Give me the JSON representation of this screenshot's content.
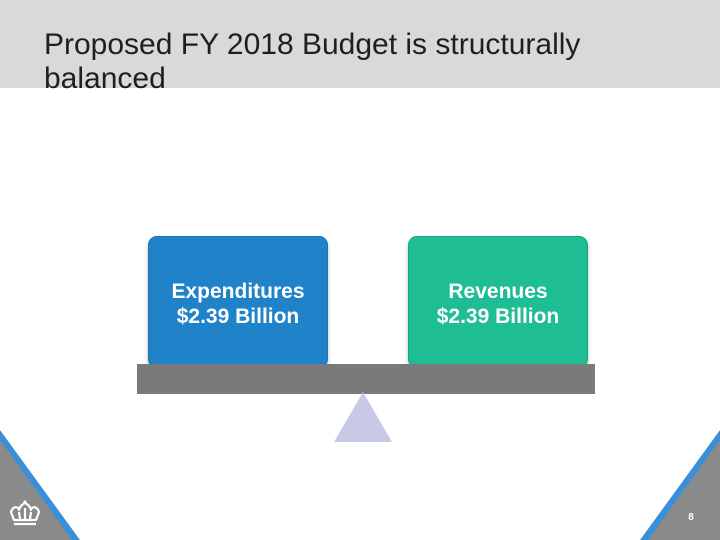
{
  "slide": {
    "title": "Proposed FY 2018 Budget is structurally balanced",
    "expenditures": {
      "label": "Expenditures",
      "amount": "$2.39 Billion"
    },
    "revenues": {
      "label": "Revenues",
      "amount": "$2.39 Billion"
    },
    "page_number": "8"
  },
  "colors": {
    "title_band": "#d9d9d9",
    "expenditures_box": "#2083c9",
    "revenues_box": "#1fbd93",
    "beam": "#7a7a7a",
    "fulcrum": "#c8c9e6",
    "corner_accent": "#3a8fd8",
    "corner_fill": "#8a8a8a"
  },
  "icons": {
    "logo": "crown-icon"
  }
}
